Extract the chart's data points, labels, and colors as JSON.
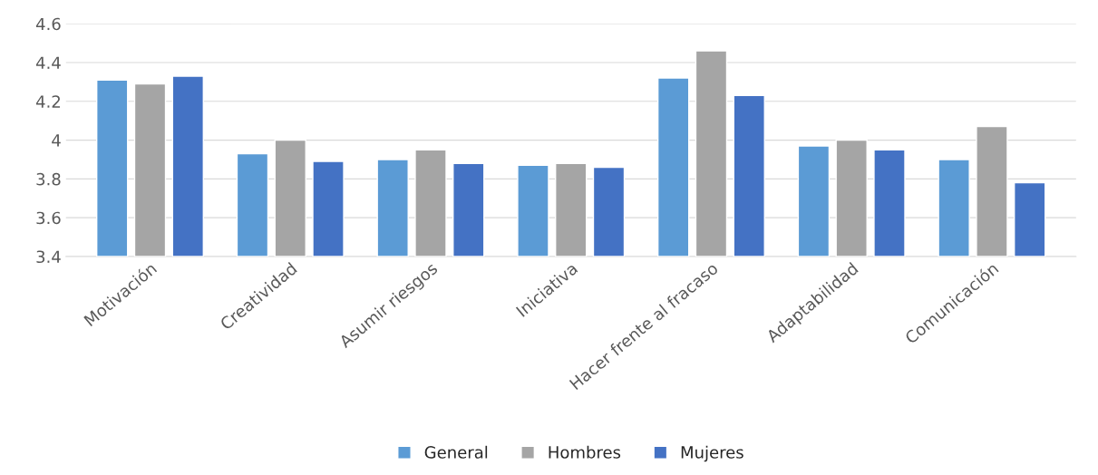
{
  "chart_data": {
    "type": "bar",
    "categories": [
      "Motivación",
      "Creatividad",
      "Asumir riesgos",
      "Iniciativa",
      "Hacer frente al fracaso",
      "Adaptabilidad",
      "Comunicación"
    ],
    "series": [
      {
        "name": "General",
        "color": "#5b9bd5",
        "values": [
          4.31,
          3.93,
          3.9,
          3.87,
          4.32,
          3.97,
          3.9
        ]
      },
      {
        "name": "Hombres",
        "color": "#a5a5a5",
        "values": [
          4.29,
          4.0,
          3.95,
          3.88,
          4.46,
          4.0,
          4.07
        ]
      },
      {
        "name": "Mujeres",
        "color": "#4472c4",
        "values": [
          4.33,
          3.89,
          3.88,
          3.86,
          4.23,
          3.95,
          3.78
        ]
      }
    ],
    "ylim": [
      3.4,
      4.6
    ],
    "yticks": [
      3.4,
      3.6,
      3.8,
      {
        "value": 4,
        "label": "4"
      },
      4.2,
      4.4,
      4.6
    ],
    "grid": "y",
    "legend": "bottom"
  }
}
